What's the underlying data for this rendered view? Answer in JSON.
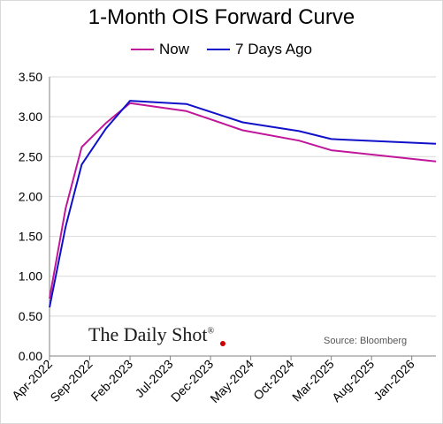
{
  "chart_data": {
    "type": "line",
    "title": "1-Month OIS Forward Curve",
    "xlabel": "",
    "ylabel": "",
    "x_tick_labels": [
      "Apr-2022",
      "Sep-2022",
      "Feb-2023",
      "Jul-2023",
      "Dec-2023",
      "May-2024",
      "Oct-2024",
      "Mar-2025",
      "Aug-2025",
      "Jan-2026"
    ],
    "x_tick_months": [
      "2022-04",
      "2022-09",
      "2023-02",
      "2023-07",
      "2023-12",
      "2024-05",
      "2024-10",
      "2025-03",
      "2025-08",
      "2026-01"
    ],
    "xlim": [
      "2022-04",
      "2026-04"
    ],
    "ylim": [
      0.0,
      3.5
    ],
    "y_ticks": [
      "0.00",
      "0.50",
      "1.00",
      "1.50",
      "2.00",
      "2.50",
      "3.00",
      "3.50"
    ],
    "grid": "horizontal",
    "legend_position": "top-center",
    "series": [
      {
        "name": "Now",
        "color": "#c0169a",
        "points": [
          {
            "x": "2022-04",
            "y": 0.72
          },
          {
            "x": "2022-06",
            "y": 1.85
          },
          {
            "x": "2022-08",
            "y": 2.62
          },
          {
            "x": "2022-11",
            "y": 2.92
          },
          {
            "x": "2023-02",
            "y": 3.17
          },
          {
            "x": "2023-09",
            "y": 3.07
          },
          {
            "x": "2024-04",
            "y": 2.83
          },
          {
            "x": "2024-11",
            "y": 2.7
          },
          {
            "x": "2025-03",
            "y": 2.58
          },
          {
            "x": "2026-04",
            "y": 2.44
          }
        ]
      },
      {
        "name": "7 Days Ago",
        "color": "#1010c8",
        "points": [
          {
            "x": "2022-04",
            "y": 0.61
          },
          {
            "x": "2022-06",
            "y": 1.62
          },
          {
            "x": "2022-08",
            "y": 2.4
          },
          {
            "x": "2022-11",
            "y": 2.85
          },
          {
            "x": "2023-02",
            "y": 3.2
          },
          {
            "x": "2023-09",
            "y": 3.16
          },
          {
            "x": "2024-04",
            "y": 2.93
          },
          {
            "x": "2024-11",
            "y": 2.82
          },
          {
            "x": "2025-03",
            "y": 2.72
          },
          {
            "x": "2026-04",
            "y": 2.66
          }
        ]
      }
    ]
  },
  "watermark": {
    "text": "The Daily Shot",
    "mark": "®"
  },
  "source": "Source: Bloomberg",
  "axis_color": "#808080",
  "grid_color": "#d9d9d9"
}
